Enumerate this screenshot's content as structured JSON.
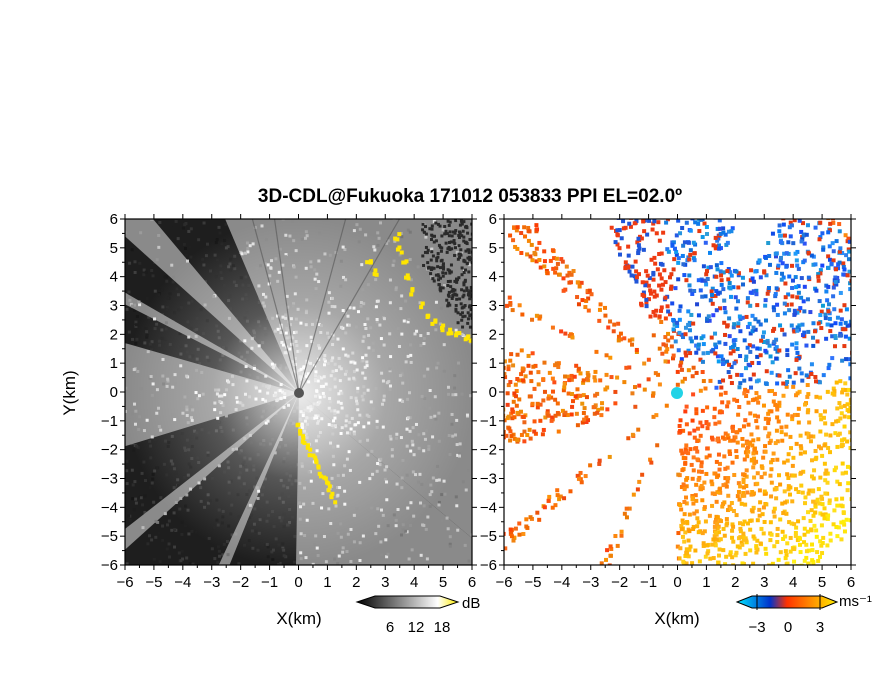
{
  "title": "3D-CDL@Fukuoka 171012 053833 PPI EL=02.0º",
  "chart_data": [
    {
      "type": "heatmap",
      "panel": "left",
      "quantity": "",
      "xlabel": "X(km)",
      "ylabel": "Y(km)",
      "xlim": [
        -6,
        6
      ],
      "ylim": [
        -6,
        6
      ],
      "xticks": [
        "-6",
        "-5",
        "-4",
        "-3",
        "-2",
        "-1",
        "0",
        "1",
        "2",
        "3",
        "4",
        "5",
        "6"
      ],
      "yticks": [
        "6",
        "5",
        "4",
        "3",
        "2",
        "1",
        "0",
        "-1",
        "-2",
        "-3",
        "-4",
        "-5",
        "-6"
      ],
      "colorbar": {
        "unit": "dB",
        "ticks": [
          "6",
          "12",
          "18"
        ],
        "colors": [
          "#000000",
          "#ffffff",
          "#ffee00"
        ]
      },
      "blocked_sectors_deg": [
        [
          113,
          130
        ],
        [
          138,
          150
        ],
        [
          153,
          164
        ],
        [
          197,
          218
        ],
        [
          222,
          245
        ],
        [
          248,
          269
        ]
      ],
      "highlight_color": "#ffe600"
    },
    {
      "type": "heatmap",
      "panel": "right",
      "quantity": "",
      "xlabel": "X(km)",
      "xlim": [
        -6,
        6
      ],
      "ylim": [
        -6,
        6
      ],
      "xticks": [
        "-6",
        "-5",
        "-4",
        "-3",
        "-2",
        "-1",
        "0",
        "1",
        "2",
        "3",
        "4",
        "5",
        "6"
      ],
      "yticks": [
        "6",
        "5",
        "4",
        "3",
        "2",
        "1",
        "0",
        "-1",
        "-2",
        "-3",
        "-4",
        "-5",
        "-6"
      ],
      "colorbar": {
        "unit": "ms⁻¹",
        "ticks": [
          "−3",
          "0",
          "3"
        ],
        "colors": [
          "#00e5ff",
          "#0033cc",
          "#ff3300",
          "#ffee00"
        ]
      },
      "blocked_sectors_deg": [
        [
          113,
          130
        ],
        [
          138,
          150
        ],
        [
          153,
          164
        ],
        [
          197,
          218
        ],
        [
          222,
          245
        ],
        [
          248,
          269
        ]
      ],
      "radar_marker_color": "#22d3e6"
    }
  ]
}
